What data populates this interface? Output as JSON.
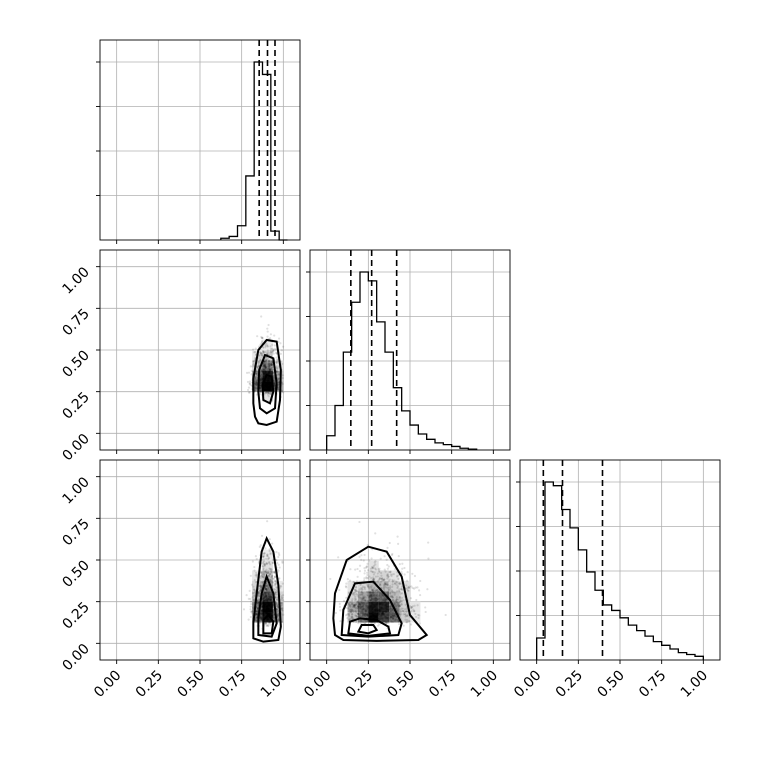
{
  "chart_data": {
    "type": "corner",
    "title": "",
    "parameters": [
      "",
      "",
      ""
    ],
    "ticks": [
      0.0,
      0.25,
      0.5,
      0.75,
      1.0
    ],
    "tick_labels": [
      "0.00",
      "0.25",
      "0.50",
      "0.75",
      "1.00"
    ],
    "range": [
      -0.1,
      1.1
    ],
    "grid": true,
    "histograms": [
      {
        "param_index": 0,
        "bin_edges": [
          0.625,
          0.675,
          0.725,
          0.775,
          0.825,
          0.875,
          0.925,
          0.975,
          1.025
        ],
        "counts": [
          0.01,
          0.02,
          0.08,
          0.36,
          1.0,
          0.93,
          0.05,
          0.0
        ],
        "quantiles": [
          0.855,
          0.905,
          0.95
        ]
      },
      {
        "param_index": 1,
        "bin_edges": [
          0.0,
          0.05,
          0.1,
          0.15,
          0.2,
          0.25,
          0.3,
          0.35,
          0.4,
          0.45,
          0.5,
          0.55,
          0.6,
          0.65,
          0.7,
          0.75,
          0.8,
          0.85,
          0.9
        ],
        "counts": [
          0.08,
          0.25,
          0.55,
          0.83,
          1.0,
          0.95,
          0.72,
          0.55,
          0.35,
          0.22,
          0.14,
          0.09,
          0.06,
          0.04,
          0.03,
          0.02,
          0.01,
          0.005
        ],
        "quantiles": [
          0.145,
          0.27,
          0.42
        ]
      },
      {
        "param_index": 2,
        "bin_edges": [
          0.0,
          0.05,
          0.1,
          0.15,
          0.2,
          0.25,
          0.3,
          0.35,
          0.4,
          0.45,
          0.5,
          0.55,
          0.6,
          0.65,
          0.7,
          0.75,
          0.8,
          0.85,
          0.9,
          0.95,
          1.0
        ],
        "counts": [
          0.12,
          0.97,
          0.95,
          0.82,
          0.72,
          0.6,
          0.48,
          0.38,
          0.3,
          0.27,
          0.23,
          0.19,
          0.16,
          0.13,
          0.1,
          0.08,
          0.06,
          0.04,
          0.03,
          0.02
        ],
        "quantiles": [
          0.04,
          0.155,
          0.395
        ]
      }
    ],
    "density_panels": [
      {
        "x_param": 0,
        "y_param": 1,
        "center": [
          0.9,
          0.26
        ],
        "spread": [
          0.04,
          0.12
        ]
      },
      {
        "x_param": 0,
        "y_param": 2,
        "center": [
          0.9,
          0.14
        ],
        "spread": [
          0.04,
          0.17
        ]
      },
      {
        "x_param": 1,
        "y_param": 2,
        "center": [
          0.26,
          0.14
        ],
        "spread": [
          0.12,
          0.16
        ]
      }
    ],
    "contours": [
      {
        "x_param": 0,
        "y_param": 1,
        "levels": [
          [
            [
              0.83,
              0.1
            ],
            [
              0.85,
              0.06
            ],
            [
              0.9,
              0.05
            ],
            [
              0.96,
              0.07
            ],
            [
              0.98,
              0.2
            ],
            [
              0.985,
              0.38
            ],
            [
              0.96,
              0.55
            ],
            [
              0.9,
              0.56
            ],
            [
              0.85,
              0.5
            ],
            [
              0.82,
              0.33
            ],
            [
              0.82,
              0.18
            ]
          ],
          [
            [
              0.86,
              0.15
            ],
            [
              0.9,
              0.12
            ],
            [
              0.95,
              0.15
            ],
            [
              0.96,
              0.3
            ],
            [
              0.94,
              0.45
            ],
            [
              0.89,
              0.47
            ],
            [
              0.855,
              0.38
            ],
            [
              0.85,
              0.25
            ]
          ],
          [
            [
              0.88,
              0.2
            ],
            [
              0.92,
              0.18
            ],
            [
              0.94,
              0.25
            ],
            [
              0.93,
              0.34
            ],
            [
              0.9,
              0.35
            ],
            [
              0.875,
              0.29
            ]
          ]
        ]
      },
      {
        "x_param": 0,
        "y_param": 2,
        "levels": [
          [
            [
              0.82,
              0.03
            ],
            [
              0.88,
              0.01
            ],
            [
              0.97,
              0.02
            ],
            [
              0.985,
              0.1
            ],
            [
              0.97,
              0.35
            ],
            [
              0.94,
              0.55
            ],
            [
              0.9,
              0.63
            ],
            [
              0.87,
              0.55
            ],
            [
              0.84,
              0.3
            ],
            [
              0.82,
              0.12
            ]
          ],
          [
            [
              0.85,
              0.05
            ],
            [
              0.93,
              0.04
            ],
            [
              0.96,
              0.12
            ],
            [
              0.94,
              0.3
            ],
            [
              0.9,
              0.4
            ],
            [
              0.87,
              0.3
            ],
            [
              0.85,
              0.15
            ]
          ],
          [
            [
              0.88,
              0.06
            ],
            [
              0.93,
              0.06
            ],
            [
              0.94,
              0.13
            ],
            [
              0.91,
              0.17
            ],
            [
              0.88,
              0.14
            ]
          ]
        ]
      },
      {
        "x_param": 1,
        "y_param": 2,
        "levels": [
          [
            [
              0.05,
              0.05
            ],
            [
              0.1,
              0.02
            ],
            [
              0.3,
              0.015
            ],
            [
              0.55,
              0.02
            ],
            [
              0.6,
              0.05
            ],
            [
              0.5,
              0.17
            ],
            [
              0.45,
              0.4
            ],
            [
              0.36,
              0.55
            ],
            [
              0.25,
              0.58
            ],
            [
              0.12,
              0.5
            ],
            [
              0.05,
              0.3
            ],
            [
              0.04,
              0.15
            ]
          ],
          [
            [
              0.09,
              0.05
            ],
            [
              0.25,
              0.04
            ],
            [
              0.43,
              0.05
            ],
            [
              0.45,
              0.12
            ],
            [
              0.38,
              0.26
            ],
            [
              0.28,
              0.37
            ],
            [
              0.17,
              0.36
            ],
            [
              0.1,
              0.2
            ]
          ],
          [
            [
              0.13,
              0.06
            ],
            [
              0.25,
              0.045
            ],
            [
              0.38,
              0.06
            ],
            [
              0.37,
              0.1
            ],
            [
              0.3,
              0.14
            ],
            [
              0.2,
              0.15
            ],
            [
              0.14,
              0.13
            ]
          ],
          [
            [
              0.19,
              0.07
            ],
            [
              0.25,
              0.06
            ],
            [
              0.3,
              0.08
            ],
            [
              0.28,
              0.11
            ],
            [
              0.21,
              0.11
            ]
          ]
        ]
      }
    ]
  }
}
